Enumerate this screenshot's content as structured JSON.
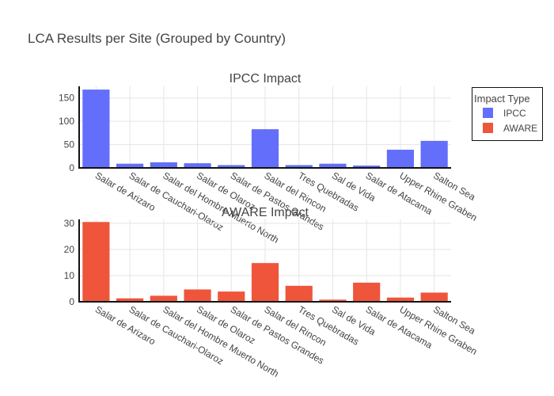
{
  "chart_data": {
    "type": "bar",
    "title": "LCA Results per Site (Grouped by Country)",
    "categories": [
      "Salar de Arizaro",
      "Salar de Cauchari-Olaroz",
      "Salar del Hombre Muerto North",
      "Salar de Olaroz",
      "Salar de Pastos Grandes",
      "Salar del Rincon",
      "Tres Quebradas",
      "Sal de Vida",
      "Salar de Atacama",
      "Upper Rhine Graben",
      "Salton Sea"
    ],
    "legend": {
      "title": "Impact Type",
      "position": "top-right"
    },
    "grid": true,
    "subplots": [
      {
        "title": "IPCC Impact",
        "series": [
          {
            "name": "IPCC",
            "color": "#636efa",
            "values": [
              168,
              9,
              12,
              10,
              6,
              83,
              6,
              9,
              5,
              39,
              58
            ]
          }
        ],
        "ylim": [
          0,
          175
        ],
        "yticks": [
          0,
          50,
          100,
          150
        ]
      },
      {
        "title": "AWARE Impact",
        "series": [
          {
            "name": "AWARE",
            "color": "#ef553b",
            "values": [
              30.5,
              1.3,
              2.3,
              4.7,
              3.9,
              14.8,
              6.1,
              0.8,
              7.3,
              1.6,
              3.5
            ]
          }
        ],
        "ylim": [
          0,
          31.5
        ],
        "yticks": [
          0,
          10,
          20,
          30
        ]
      }
    ]
  }
}
